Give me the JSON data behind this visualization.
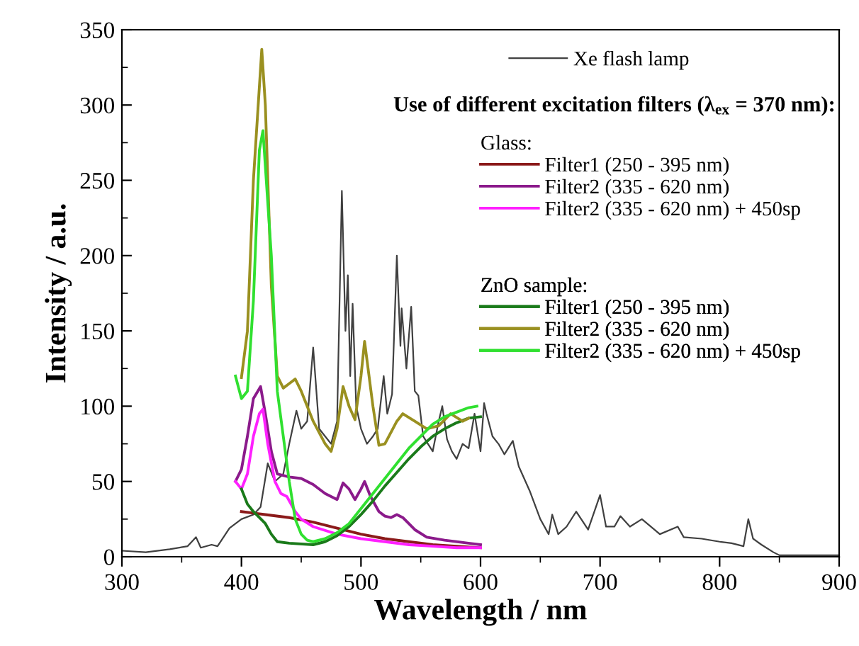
{
  "chart_data": {
    "type": "line",
    "xlabel": "Wavelength / nm",
    "ylabel": "Intensity / a.u.",
    "xlim": [
      300,
      900
    ],
    "xticks": [
      300,
      400,
      500,
      600,
      700,
      800,
      900
    ],
    "ylim": [
      0,
      350
    ],
    "yticks": [
      0,
      50,
      100,
      150,
      200,
      250,
      300,
      350
    ],
    "grid": false,
    "legend": "top right",
    "marker": "none",
    "line_style": "solid",
    "annotations": [
      "Use of different excitation filters (λ$_{ex}$ = 370 nm):",
      "Glass:",
      "ZnO sample:"
    ],
    "series": [
      {
        "name": "Xe flash lamp",
        "color": "#404040",
        "x": [
          300,
          320,
          340,
          355,
          362,
          366,
          375,
          380,
          390,
          400,
          410,
          416,
          422,
          428,
          435,
          440,
          446,
          450,
          455,
          460,
          465,
          470,
          475,
          480,
          484,
          487,
          489,
          491,
          493,
          496,
          500,
          505,
          510,
          514,
          519,
          522,
          526,
          530,
          533,
          534,
          538,
          542,
          545,
          548,
          552,
          556,
          560,
          565,
          568,
          572,
          576,
          580,
          585,
          590,
          595,
          600,
          603,
          605,
          610,
          615,
          620,
          627,
          632,
          641,
          650,
          657,
          660,
          665,
          672,
          680,
          690,
          700,
          705,
          712,
          717,
          725,
          735,
          750,
          765,
          770,
          785,
          800,
          810,
          820,
          824,
          828,
          835,
          845,
          850,
          870,
          900
        ],
        "values": [
          4,
          3,
          5,
          7,
          13,
          6,
          8,
          7,
          19,
          25,
          28,
          33,
          62,
          50,
          55,
          75,
          97,
          85,
          90,
          139,
          85,
          80,
          75,
          90,
          243,
          150,
          187,
          120,
          168,
          100,
          85,
          75,
          80,
          85,
          120,
          95,
          108,
          200,
          140,
          165,
          125,
          166,
          110,
          107,
          80,
          75,
          70,
          90,
          100,
          78,
          70,
          65,
          75,
          72,
          95,
          70,
          102,
          95,
          80,
          75,
          68,
          77,
          60,
          44,
          25,
          15,
          28,
          15,
          20,
          30,
          18,
          41,
          20,
          20,
          27,
          20,
          25,
          15,
          20,
          13,
          12,
          10,
          9,
          7,
          25,
          12,
          8,
          3,
          1,
          1,
          1
        ]
      },
      {
        "name": "Filter1 (250 - 395 nm)",
        "color": "#8b1a1a",
        "x": [
          400,
          410,
          420,
          440,
          460,
          480,
          500,
          520,
          540,
          560,
          580,
          600
        ],
        "values": [
          30,
          29,
          28,
          26,
          23,
          19,
          15,
          12,
          10,
          8,
          7,
          6
        ]
      },
      {
        "name": "Filter2 (335 - 620 nm)",
        "color": "#8b1a8b",
        "x": [
          395,
          400,
          405,
          410,
          416,
          420,
          425,
          430,
          440,
          450,
          460,
          470,
          480,
          485,
          490,
          495,
          500,
          503,
          508,
          515,
          520,
          525,
          530,
          535,
          545,
          555,
          570,
          590,
          600
        ],
        "values": [
          50,
          58,
          80,
          105,
          113,
          95,
          70,
          55,
          53,
          52,
          48,
          42,
          38,
          49,
          45,
          38,
          45,
          50,
          40,
          30,
          27,
          26,
          28,
          26,
          18,
          13,
          11,
          9,
          8
        ]
      },
      {
        "name": "Filter2 (335 - 620 nm) + 450sp",
        "color": "#ff20ff",
        "x": [
          395,
          400,
          405,
          410,
          415,
          418,
          422,
          428,
          433,
          438,
          445,
          450,
          460,
          480,
          500,
          520,
          540,
          560,
          580,
          600
        ],
        "values": [
          50,
          45,
          55,
          80,
          95,
          98,
          75,
          50,
          42,
          40,
          30,
          25,
          20,
          15,
          12,
          10,
          8,
          7,
          6,
          6
        ]
      },
      {
        "name": "Filter1 (250 - 395 nm)",
        "color": "#1a7a1a",
        "x": [
          400,
          405,
          410,
          420,
          425,
          430,
          440,
          460,
          470,
          480,
          490,
          500,
          510,
          520,
          530,
          540,
          550,
          560,
          570,
          580,
          590,
          600
        ],
        "values": [
          45,
          35,
          30,
          22,
          15,
          10,
          9,
          8,
          10,
          14,
          20,
          28,
          37,
          47,
          56,
          65,
          73,
          80,
          85,
          89,
          92,
          93
        ]
      },
      {
        "name": "Filter2 (335 - 620 nm)",
        "color": "#9a9020",
        "x": [
          400,
          405,
          410,
          417,
          420,
          425,
          430,
          435,
          440,
          445,
          450,
          460,
          470,
          475,
          480,
          485,
          490,
          495,
          500,
          503,
          510,
          515,
          520,
          530,
          535,
          545,
          555,
          565,
          575,
          585,
          590
        ],
        "values": [
          119,
          150,
          250,
          337,
          300,
          180,
          120,
          112,
          115,
          118,
          110,
          90,
          75,
          70,
          85,
          113,
          100,
          91,
          120,
          143,
          100,
          74,
          75,
          90,
          95,
          90,
          85,
          87,
          95,
          90,
          92
        ]
      },
      {
        "name": "Filter2 (335 - 620 nm) + 450sp",
        "color": "#30e030",
        "x": [
          395,
          400,
          405,
          410,
          415,
          418,
          425,
          430,
          435,
          440,
          445,
          450,
          455,
          460,
          470,
          480,
          490,
          500,
          510,
          520,
          530,
          540,
          550,
          560,
          570,
          580,
          590,
          597
        ],
        "values": [
          120,
          105,
          110,
          170,
          270,
          283,
          200,
          110,
          80,
          50,
          25,
          15,
          11,
          10,
          12,
          16,
          22,
          32,
          42,
          52,
          62,
          72,
          80,
          88,
          93,
          96,
          99,
          100
        ]
      }
    ]
  }
}
